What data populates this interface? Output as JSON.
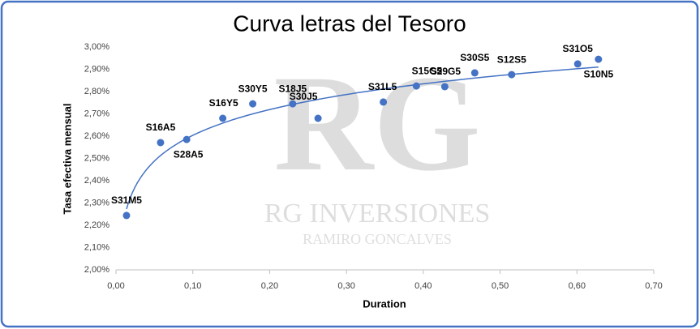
{
  "chart_data": {
    "type": "scatter",
    "title": "Curva letras del Tesoro",
    "x_label": "Duration",
    "y_label": "Tasa efectiva mensual",
    "point_labels": [
      "S31M5",
      "S16A5",
      "S28A5",
      "S16Y5",
      "S30Y5",
      "S18J5",
      "S30J5",
      "S31L5",
      "S15G5",
      "S29G5",
      "S30S5",
      "S12S5",
      "S31O5",
      "S10N5"
    ],
    "x": [
      0.0137,
      0.058,
      0.092,
      0.139,
      0.178,
      0.23,
      0.263,
      0.348,
      0.391,
      0.428,
      0.467,
      0.515,
      0.601,
      0.628
    ],
    "values": [
      2.244,
      2.571,
      2.585,
      2.68,
      2.745,
      2.745,
      2.68,
      2.753,
      2.825,
      2.822,
      2.884,
      2.876,
      2.924,
      2.945
    ],
    "color": "#4472c4",
    "trendline": "logarithmic",
    "xlim": [
      0,
      0.7
    ],
    "xticks": [
      {
        "value": 0,
        "label": "0,00"
      },
      {
        "value": 0.1,
        "label": "0,10"
      },
      {
        "value": 0.2,
        "label": "0,20"
      },
      {
        "value": 0.3,
        "label": "0,30"
      },
      {
        "value": 0.4,
        "label": "0,40"
      },
      {
        "value": 0.5,
        "label": "0,50"
      },
      {
        "value": 0.6,
        "label": "0,60"
      },
      {
        "value": 0.7,
        "label": "0,70"
      }
    ],
    "ylim": [
      2,
      3
    ],
    "yticks": [
      {
        "value": 2,
        "label": "2,00%"
      },
      {
        "value": 2.1,
        "label": "2,10%"
      },
      {
        "value": 2.2,
        "label": "2,20%"
      },
      {
        "value": 2.3,
        "label": "2,30%"
      },
      {
        "value": 2.4,
        "label": "2,40%"
      },
      {
        "value": 2.5,
        "label": "2,50%"
      },
      {
        "value": 2.6,
        "label": "2,60%"
      },
      {
        "value": 2.7,
        "label": "2,70%"
      },
      {
        "value": 2.8,
        "label": "2,80%"
      },
      {
        "value": 2.9,
        "label": "2,90%"
      },
      {
        "value": 3,
        "label": "3,00%"
      }
    ],
    "watermark": [
      "RG",
      "RG INVERSIONES",
      "RAMIRO GONCALVES"
    ]
  }
}
